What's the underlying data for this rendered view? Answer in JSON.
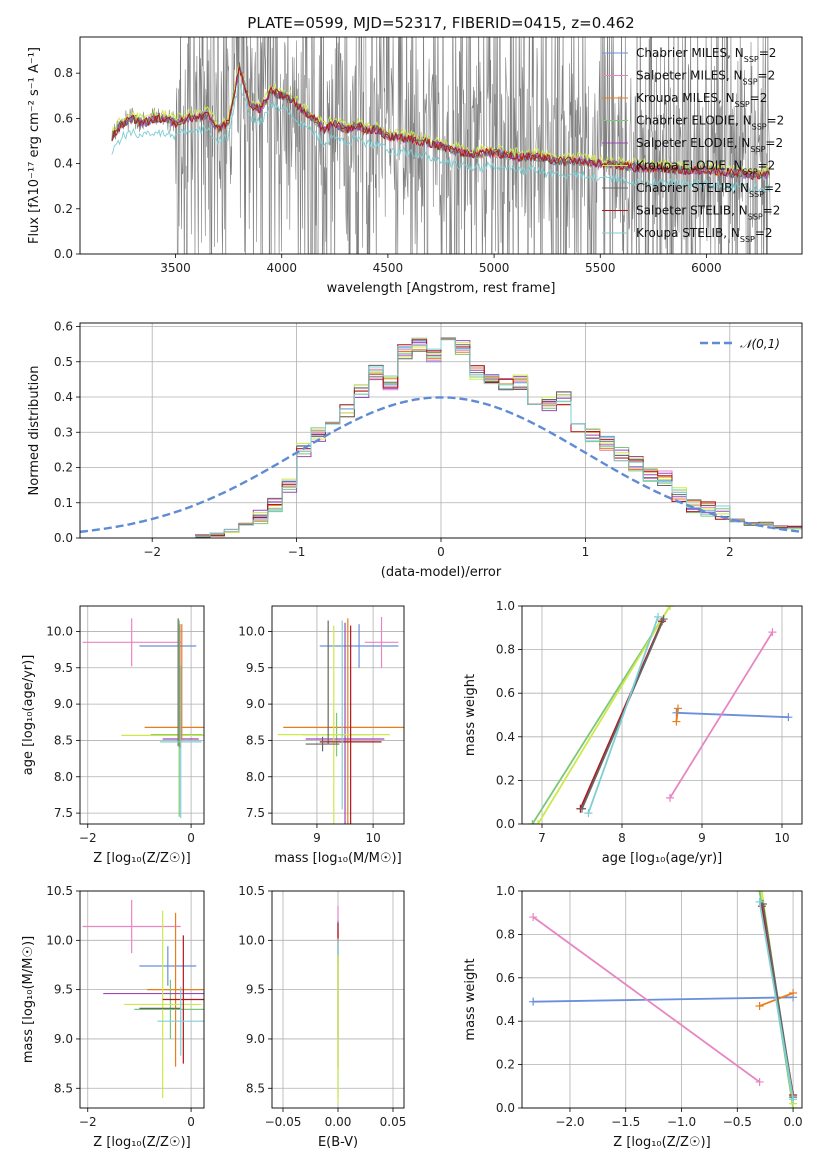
{
  "figure": {
    "title": "PLATE=0599, MJD=52317, FIBERID=0415, z=0.462"
  },
  "colors": {
    "series": [
      "#6a8fdc",
      "#e886c4",
      "#e87d1e",
      "#7bc77b",
      "#9b49b8",
      "#cfe84a",
      "#666666",
      "#b0171f",
      "#7ecfd4"
    ],
    "data": "#7f7f7f",
    "gauss": "#5f8bd6",
    "grid": "#b0b0b0"
  },
  "chart_data": [
    {
      "id": "spectrum",
      "type": "line",
      "title": "PLATE=0599, MJD=52317, FIBERID=0415, z=0.462",
      "xlabel": "wavelength [Angstrom, rest frame]",
      "ylabel": "Flux [fλ10⁻¹⁷ erg cm⁻² s⁻¹ A⁻¹]",
      "xlim": [
        3050,
        6450
      ],
      "ylim": [
        0,
        0.96
      ],
      "xticks": [
        "3500",
        "4000",
        "4500",
        "5000",
        "5500",
        "6000"
      ],
      "yticks": [
        "0.0",
        "0.2",
        "0.4",
        "0.6",
        "0.8"
      ],
      "grid": false,
      "legend_position": "top-right",
      "legend": [
        "Chabrier MILES, N",
        "Salpeter MILES, N",
        "Kroupa MILES, N",
        "Chabrier ELODIE, N",
        "Salpeter ELODIE, N",
        "Kroupa ELODIE, N",
        "Chabrier STELIB, N",
        "Salpeter STELIB, N",
        "Kroupa STELIB, N"
      ],
      "legend_sub": "SSP",
      "legend_suffix": "=2",
      "model_continuum": {
        "x": [
          3200,
          3250,
          3300,
          3350,
          3400,
          3450,
          3500,
          3550,
          3600,
          3650,
          3700,
          3750,
          3800,
          3850,
          3900,
          3950,
          4000,
          4050,
          4100,
          4150,
          4200,
          4250,
          4300,
          4350,
          4400,
          4450,
          4500,
          4600,
          4700,
          4800,
          4900,
          5000,
          5100,
          5200,
          5300,
          5400,
          5500,
          5600,
          5700,
          5800,
          5900,
          6000,
          6100,
          6200,
          6300
        ],
        "y": [
          0.52,
          0.58,
          0.6,
          0.58,
          0.6,
          0.6,
          0.58,
          0.6,
          0.6,
          0.62,
          0.55,
          0.58,
          0.83,
          0.66,
          0.64,
          0.72,
          0.7,
          0.68,
          0.63,
          0.6,
          0.55,
          0.58,
          0.55,
          0.57,
          0.55,
          0.55,
          0.52,
          0.51,
          0.49,
          0.46,
          0.44,
          0.45,
          0.43,
          0.43,
          0.41,
          0.41,
          0.4,
          0.39,
          0.38,
          0.38,
          0.37,
          0.37,
          0.36,
          0.35,
          0.35
        ]
      }
    },
    {
      "id": "residuals",
      "type": "step",
      "xlabel": "(data-model)/error",
      "ylabel": "Normed distribution",
      "xlim": [
        -2.5,
        2.5
      ],
      "ylim": [
        0,
        0.61
      ],
      "xticks": [
        "−2",
        "−1",
        "0",
        "1",
        "2"
      ],
      "yticks": [
        "0.0",
        "0.1",
        "0.2",
        "0.3",
        "0.4",
        "0.5",
        "0.6"
      ],
      "grid": true,
      "legend_position": "top-right",
      "legend": [
        "𝒩(0,1)"
      ],
      "bin_edges": [
        -1.8,
        -1.7,
        -1.6,
        -1.5,
        -1.4,
        -1.3,
        -1.2,
        -1.1,
        -1.0,
        -0.9,
        -0.8,
        -0.7,
        -0.6,
        -0.5,
        -0.4,
        -0.3,
        -0.2,
        -0.1,
        0.0,
        0.1,
        0.2,
        0.3,
        0.4,
        0.5,
        0.6,
        0.7,
        0.8,
        0.9,
        1.0,
        1.1,
        1.2,
        1.3,
        1.4,
        1.5,
        1.6,
        1.7,
        1.8,
        1.9,
        2.0,
        2.1,
        2.2,
        2.3,
        2.4,
        2.5
      ],
      "hist_values": [
        0.003,
        0.005,
        0.01,
        0.02,
        0.04,
        0.06,
        0.09,
        0.15,
        0.25,
        0.29,
        0.32,
        0.36,
        0.42,
        0.47,
        0.44,
        0.53,
        0.55,
        0.52,
        0.56,
        0.54,
        0.47,
        0.45,
        0.44,
        0.44,
        0.36,
        0.38,
        0.4,
        0.32,
        0.29,
        0.27,
        0.24,
        0.21,
        0.18,
        0.17,
        0.12,
        0.09,
        0.08,
        0.07,
        0.05,
        0.04,
        0.04,
        0.03,
        0.03
      ]
    },
    {
      "id": "age-vs-Z",
      "type": "errorbar",
      "xlabel": "Z [log₁₀(Z/Z☉)]",
      "ylabel": "age  [log₁₀(age/yr)]",
      "xlim": [
        -2.15,
        0.25
      ],
      "ylim": [
        7.35,
        10.35
      ],
      "xticks": [
        "−2",
        "0"
      ],
      "yticks": [
        "7.5",
        "8.0",
        "8.5",
        "9.0",
        "9.5",
        "10.0"
      ],
      "grid": true,
      "points": [
        {
          "x": -0.45,
          "xerr": 0.55,
          "y": 9.8,
          "yerr": 0.0,
          "c": 0
        },
        {
          "x": -1.15,
          "xerr": 0.95,
          "y": 9.85,
          "yerr": 0.33,
          "c": 1
        },
        {
          "x": -0.3,
          "xerr": 0.6,
          "y": 8.68,
          "yerr": 0.0,
          "c": 2
        },
        {
          "x": -0.28,
          "xerr": 0.5,
          "y": 8.58,
          "yerr": 0.0,
          "c": 3
        },
        {
          "x": -0.2,
          "xerr": 0.35,
          "y": 8.52,
          "yerr": 0.0,
          "c": 4
        },
        {
          "x": -0.4,
          "xerr": 0.95,
          "y": 8.57,
          "yerr": 0.0,
          "c": 5
        },
        {
          "x": -0.25,
          "xerr": 0.0,
          "y": 9.3,
          "yerr": 0.88,
          "c": 6
        },
        {
          "x": -0.22,
          "xerr": 0.0,
          "y": 9.25,
          "yerr": 0.85,
          "c": 7
        },
        {
          "x": -0.2,
          "xerr": 0.4,
          "y": 8.48,
          "yerr": 1.05,
          "c": 8
        },
        {
          "x": -0.23,
          "xerr": 0.0,
          "y": 8.8,
          "yerr": 1.35,
          "c": 3
        },
        {
          "x": -0.18,
          "xerr": 0.0,
          "y": 9.3,
          "yerr": 0.8,
          "c": 2
        }
      ]
    },
    {
      "id": "age-vs-mass",
      "type": "errorbar",
      "xlabel": "mass [log₁₀(M/M☉)]",
      "ylabel": "",
      "xlim": [
        8.2,
        10.55
      ],
      "ylim": [
        7.35,
        10.35
      ],
      "xticks": [
        "9",
        "10"
      ],
      "yticks": [
        "7.5",
        "8.0",
        "8.5",
        "9.0",
        "9.5",
        "10.0"
      ],
      "grid": true,
      "points": [
        {
          "x": 9.75,
          "xerr": 0.7,
          "y": 9.8,
          "yerr": 0.3,
          "c": 0
        },
        {
          "x": 10.15,
          "xerr": 0.3,
          "y": 9.85,
          "yerr": 0.35,
          "c": 1
        },
        {
          "x": 9.55,
          "xerr": 1.15,
          "y": 8.68,
          "yerr": 1.5,
          "c": 2
        },
        {
          "x": 9.35,
          "xerr": 0.6,
          "y": 8.58,
          "yerr": 0.3,
          "c": 3
        },
        {
          "x": 9.5,
          "xerr": 0.7,
          "y": 8.52,
          "yerr": 1.6,
          "c": 4
        },
        {
          "x": 9.3,
          "xerr": 1.0,
          "y": 8.58,
          "yerr": 1.5,
          "c": 5
        },
        {
          "x": 9.2,
          "xerr": 0.0,
          "y": 9.3,
          "yerr": 0.85,
          "c": 6
        },
        {
          "x": 9.6,
          "xerr": 0.55,
          "y": 8.48,
          "yerr": 1.6,
          "c": 7
        },
        {
          "x": 9.1,
          "xerr": 0.3,
          "y": 8.45,
          "yerr": 0.1,
          "c": 6
        },
        {
          "x": 9.45,
          "xerr": 0.0,
          "y": 8.85,
          "yerr": 1.3,
          "c": 8
        }
      ]
    },
    {
      "id": "weight-vs-age",
      "type": "line",
      "xlabel": "age  [log₁₀(age/yr)]",
      "ylabel": "mass weight",
      "xlim": [
        6.75,
        10.25
      ],
      "ylim": [
        0,
        1
      ],
      "xticks": [
        "7",
        "8",
        "9",
        "10"
      ],
      "yticks": [
        "0.0",
        "0.2",
        "0.4",
        "0.6",
        "0.8",
        "1.0"
      ],
      "grid": true,
      "series": [
        {
          "c": 0,
          "x": [
            8.68,
            10.08
          ],
          "y": [
            0.51,
            0.49
          ]
        },
        {
          "c": 1,
          "x": [
            8.6,
            9.88
          ],
          "y": [
            0.12,
            0.88
          ]
        },
        {
          "c": 2,
          "x": [
            8.68,
            8.7
          ],
          "y": [
            0.47,
            0.53
          ]
        },
        {
          "c": 3,
          "x": [
            6.88,
            8.6
          ],
          "y": [
            0.0,
            1.0
          ]
        },
        {
          "c": 5,
          "x": [
            6.95,
            8.6
          ],
          "y": [
            0.0,
            1.0
          ]
        },
        {
          "c": 7,
          "x": [
            7.48,
            8.5
          ],
          "y": [
            0.07,
            0.93
          ]
        },
        {
          "c": 6,
          "x": [
            7.5,
            8.52
          ],
          "y": [
            0.07,
            0.94
          ]
        },
        {
          "c": 8,
          "x": [
            7.58,
            8.45
          ],
          "y": [
            0.05,
            0.95
          ]
        }
      ]
    },
    {
      "id": "mass-vs-Z",
      "type": "errorbar",
      "xlabel": "Z [log₁₀(Z/Z☉)]",
      "ylabel": "mass [log₁₀(M/M☉)]",
      "xlim": [
        -2.15,
        0.25
      ],
      "ylim": [
        8.3,
        10.5
      ],
      "xticks": [
        "−2",
        "0"
      ],
      "yticks": [
        "8.5",
        "9.0",
        "9.5",
        "10.0",
        "10.5"
      ],
      "grid": true,
      "points": [
        {
          "x": -0.45,
          "xerr": 0.55,
          "y": 9.74,
          "yerr": 0.2,
          "c": 0
        },
        {
          "x": -1.15,
          "xerr": 0.95,
          "y": 10.14,
          "yerr": 0.27,
          "c": 1
        },
        {
          "x": -0.3,
          "xerr": 0.55,
          "y": 9.5,
          "yerr": 0.78,
          "c": 2
        },
        {
          "x": -0.4,
          "xerr": 0.7,
          "y": 9.3,
          "yerr": 0.3,
          "c": 3
        },
        {
          "x": -0.65,
          "xerr": 1.05,
          "y": 9.46,
          "yerr": 0.0,
          "c": 4
        },
        {
          "x": -0.55,
          "xerr": 0.75,
          "y": 9.35,
          "yerr": 0.95,
          "c": 5
        },
        {
          "x": -0.6,
          "xerr": 0.4,
          "y": 9.31,
          "yerr": 0.0,
          "c": 6
        },
        {
          "x": -0.15,
          "xerr": 0.4,
          "y": 9.4,
          "yerr": 0.65,
          "c": 7
        },
        {
          "x": -0.2,
          "xerr": 0.45,
          "y": 9.18,
          "yerr": 0.35,
          "c": 8
        }
      ]
    },
    {
      "id": "mass-vs-EBV",
      "type": "errorbar",
      "xlabel": "E(B-V)",
      "ylabel": "",
      "xlim": [
        -0.06,
        0.06
      ],
      "ylim": [
        8.3,
        10.5
      ],
      "xticks": [
        "−0.05",
        "0.00",
        "0.05"
      ],
      "yticks": [
        "8.5",
        "9.0",
        "9.5",
        "10.0",
        "10.5"
      ],
      "grid": true,
      "points": [
        {
          "x": 0.0,
          "xerr": 0.0,
          "y": 10.05,
          "yerr": 0.3,
          "c": 1
        },
        {
          "x": 0.0,
          "xerr": 0.0,
          "y": 9.6,
          "yerr": 0.6,
          "c": 0
        },
        {
          "x": 0.0,
          "xerr": 0.0,
          "y": 9.4,
          "yerr": 0.7,
          "c": 2
        },
        {
          "x": 0.0,
          "xerr": 0.0,
          "y": 9.2,
          "yerr": 0.8,
          "c": 8
        },
        {
          "x": 0.0,
          "xerr": 0.0,
          "y": 9.1,
          "yerr": 0.75,
          "c": 5
        },
        {
          "x": 0.0,
          "xerr": 0.0,
          "y": 10.1,
          "yerr": 0.08,
          "c": 7
        }
      ]
    },
    {
      "id": "weight-vs-Z",
      "type": "line",
      "xlabel": "Z [log₁₀(Z/Z☉)]",
      "ylabel": "mass weight",
      "xlim": [
        -2.43,
        0.08
      ],
      "ylim": [
        0,
        1
      ],
      "xticks": [
        "−2.0",
        "−1.5",
        "−1.0",
        "−0.5",
        "0.0"
      ],
      "yticks": [
        "0.0",
        "0.2",
        "0.4",
        "0.6",
        "0.8",
        "1.0"
      ],
      "grid": true,
      "series": [
        {
          "c": 0,
          "x": [
            -2.33,
            0.0
          ],
          "y": [
            0.49,
            0.51
          ]
        },
        {
          "c": 1,
          "x": [
            -2.33,
            -0.3
          ],
          "y": [
            0.88,
            0.12
          ]
        },
        {
          "c": 2,
          "x": [
            -0.3,
            0.0
          ],
          "y": [
            0.47,
            0.53
          ]
        },
        {
          "c": 3,
          "x": [
            -0.3,
            0.0
          ],
          "y": [
            1.0,
            0.0
          ]
        },
        {
          "c": 5,
          "x": [
            -0.28,
            0.0
          ],
          "y": [
            1.0,
            0.02
          ]
        },
        {
          "c": 7,
          "x": [
            -0.28,
            0.0
          ],
          "y": [
            0.93,
            0.06
          ]
        },
        {
          "c": 6,
          "x": [
            -0.27,
            0.0
          ],
          "y": [
            0.94,
            0.05
          ]
        },
        {
          "c": 8,
          "x": [
            -0.3,
            0.0
          ],
          "y": [
            0.95,
            0.04
          ]
        }
      ]
    }
  ]
}
